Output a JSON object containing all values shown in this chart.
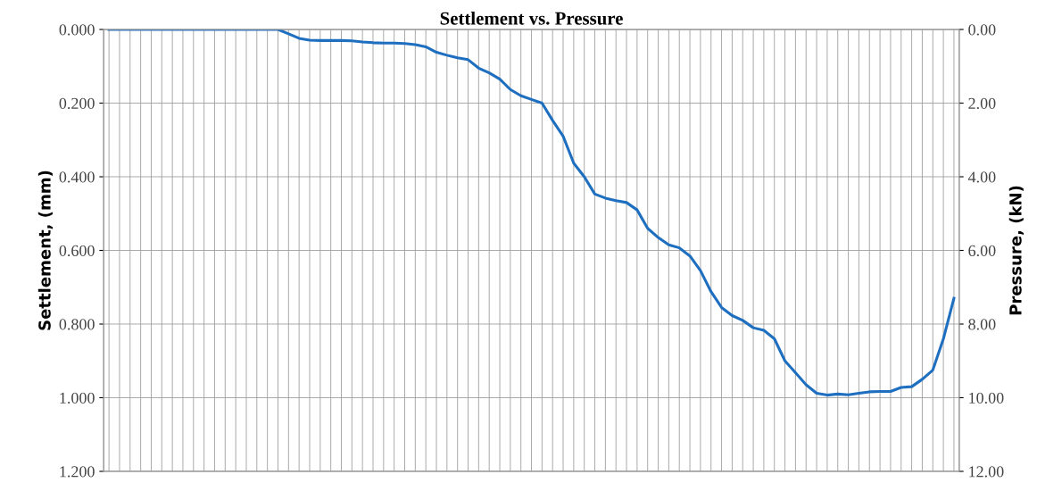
{
  "chart_data": {
    "type": "line",
    "title": "Settlement vs. Pressure",
    "ylabel": "Settlement, (mm)",
    "y2label": "Pressure, (kN)",
    "categories": [
      null,
      null,
      null,
      null,
      null,
      null,
      null,
      null,
      null,
      null,
      null,
      null,
      null,
      null,
      null,
      null,
      null,
      null,
      null,
      null,
      null,
      null,
      null,
      null,
      null,
      null,
      null,
      null,
      null,
      null,
      null,
      null,
      null,
      null,
      null,
      null,
      null,
      null,
      null,
      null,
      null,
      null,
      null,
      null,
      null,
      null,
      null,
      null,
      null,
      null,
      null,
      null,
      null,
      null,
      null,
      null,
      null,
      null,
      null,
      null,
      null,
      null,
      null,
      null,
      null,
      null,
      null,
      null,
      null,
      null,
      null,
      null,
      null,
      null,
      null,
      null,
      null,
      null,
      null,
      null,
      null
    ],
    "series": [
      {
        "color": "#1f6fc0",
        "values": [
          0,
          0,
          0,
          0,
          0,
          0,
          0,
          0,
          0,
          0,
          0,
          0,
          0,
          0,
          0,
          0,
          0,
          0.012,
          0.024,
          0.029,
          0.03,
          0.03,
          0.03,
          0.031,
          0.034,
          0.036,
          0.037,
          0.037,
          0.038,
          0.041,
          0.047,
          0.062,
          0.07,
          0.077,
          0.082,
          0.105,
          0.118,
          0.135,
          0.163,
          0.18,
          0.19,
          0.2,
          0.247,
          0.29,
          0.363,
          0.4,
          0.447,
          0.458,
          0.465,
          0.47,
          0.49,
          0.54,
          0.565,
          0.585,
          0.593,
          0.615,
          0.655,
          0.712,
          0.755,
          0.777,
          0.79,
          0.81,
          0.817,
          0.84,
          0.9,
          0.932,
          0.965,
          0.988,
          0.993,
          0.99,
          0.992,
          0.988,
          0.984,
          0.983,
          0.983,
          0.972,
          0.97,
          0.95,
          0.925,
          0.84,
          0.73
        ]
      }
    ],
    "ylim": [
      1.2,
      0
    ],
    "yticks": [
      {
        "value": 0,
        "label": "0.000"
      },
      {
        "value": 0.2,
        "label": "0.200"
      },
      {
        "value": 0.4,
        "label": "0.400"
      },
      {
        "value": 0.6,
        "label": "0.600"
      },
      {
        "value": 0.8,
        "label": "0.800"
      },
      {
        "value": 1.0,
        "label": "1.000"
      },
      {
        "value": 1.2,
        "label": "1.200"
      }
    ],
    "y2lim": [
      12,
      0
    ],
    "y2ticks": [
      {
        "value": 0,
        "label": "0.00"
      },
      {
        "value": 2,
        "label": "2.00"
      },
      {
        "value": 4,
        "label": "4.00"
      },
      {
        "value": 6,
        "label": "6.00"
      },
      {
        "value": 8,
        "label": "8.00"
      },
      {
        "value": 10,
        "label": "10.00"
      },
      {
        "value": 12,
        "label": "12.00"
      }
    ],
    "grid": true,
    "marker": "none",
    "line_style": "solid"
  }
}
